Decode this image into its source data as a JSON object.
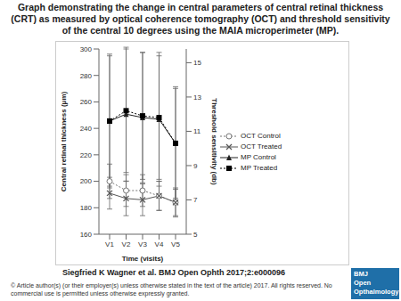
{
  "header": {
    "title": "Graph demonstrating the change in central parameters of central retinal thickness (CRT) as measured by optical coherence tomography (OCT) and threshold sensitivity of the central 10 degrees using the MAIA microperimeter (MP)."
  },
  "chart_data": {
    "type": "line",
    "categories": [
      "V1",
      "V2",
      "V3",
      "V4",
      "V5"
    ],
    "x_label": "Time (visits)",
    "y_label": "Central retinal thickness (μm)",
    "y2_label": "Threshold sensitivity (db)",
    "ylim": [
      160,
      300
    ],
    "yticks": [
      160,
      180,
      200,
      220,
      240,
      260,
      280,
      300
    ],
    "y2lim": [
      5,
      15.8
    ],
    "y2ticks": [
      5,
      7,
      9,
      11,
      13,
      15
    ],
    "grid": false,
    "legend": "right",
    "series": [
      {
        "name": "OCT Control",
        "color": "#777777",
        "marker": "circle",
        "line_style": "dotted",
        "values": [
          200,
          193,
          193,
          189,
          184
        ],
        "errors": [
          13,
          12,
          12,
          11,
          10
        ]
      },
      {
        "name": "OCT Treated",
        "color": "#555555",
        "marker": "x",
        "line_style": "solid",
        "values": [
          191,
          187,
          186,
          189,
          184
        ],
        "errors": [
          12,
          13,
          12,
          11,
          11
        ]
      },
      {
        "name": "MP Control",
        "color": "#222222",
        "marker": "triangle",
        "line_style": "solid",
        "axis": "y2",
        "values": [
          11.6,
          12.0,
          11.8,
          11.7,
          10.3
        ],
        "errors": [
          3.9,
          3.9,
          3.8,
          3.9,
          3.3
        ]
      },
      {
        "name": "MP Treated",
        "color": "#000000",
        "marker": "square",
        "line_style": "dotted",
        "axis": "y2",
        "values": [
          11.6,
          12.2,
          11.9,
          11.8,
          10.3
        ],
        "errors": [
          3.8,
          3.6,
          3.7,
          3.6,
          3.2
        ]
      }
    ]
  },
  "footer": {
    "citation": "Siegfried K Wagner et al. BMJ Open Ophth 2017;2:e000096",
    "copyright": "© Article author(s) (or their employer(s) unless otherwise stated in the text of the article) 2017. All rights reserved. No commercial use is permitted unless otherwise expressly granted.",
    "logo": [
      "BMJ",
      "Open",
      "Opthalmology"
    ]
  }
}
